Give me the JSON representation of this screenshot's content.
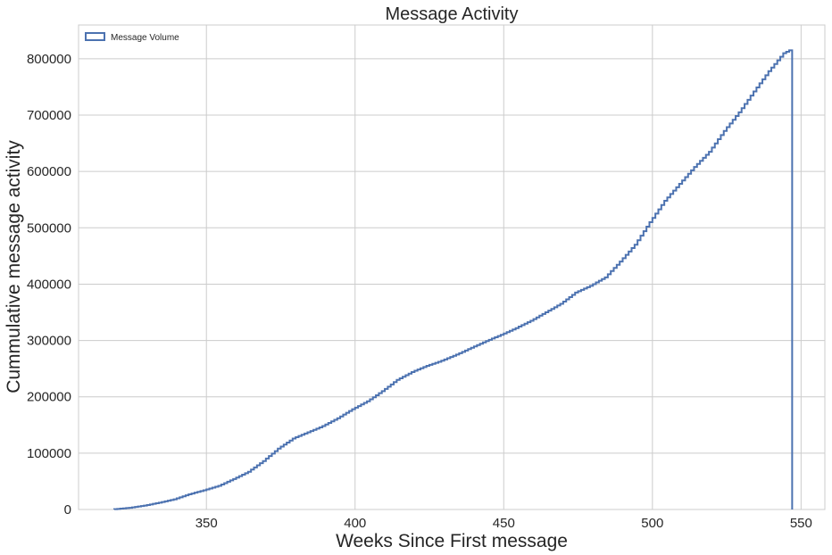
{
  "chart_data": {
    "type": "line",
    "title": "Message Activity",
    "xlabel": "Weeks Since First message",
    "ylabel": "Cummulative message activity",
    "xlim": [
      307,
      558
    ],
    "ylim": [
      0,
      860000
    ],
    "xticks": [
      350,
      400,
      450,
      500,
      550
    ],
    "yticks": [
      0,
      100000,
      200000,
      300000,
      400000,
      500000,
      600000,
      700000,
      800000
    ],
    "grid": true,
    "legend_position": "top-left",
    "series": [
      {
        "name": "Message Volume",
        "style": "step",
        "color": "#4c72b0",
        "x": [
          319,
          325,
          330,
          335,
          340,
          345,
          350,
          355,
          360,
          365,
          370,
          375,
          380,
          385,
          390,
          395,
          400,
          405,
          410,
          415,
          420,
          425,
          430,
          435,
          440,
          445,
          450,
          455,
          460,
          465,
          470,
          475,
          480,
          485,
          490,
          495,
          500,
          505,
          510,
          515,
          520,
          525,
          530,
          535,
          540,
          545,
          547
        ],
        "y": [
          0,
          3000,
          7000,
          12000,
          18000,
          27000,
          34000,
          42000,
          54000,
          67000,
          86000,
          108000,
          126000,
          137000,
          148000,
          162000,
          178000,
          192000,
          210000,
          230000,
          244000,
          255000,
          264000,
          275000,
          287000,
          299000,
          310000,
          322000,
          335000,
          350000,
          365000,
          385000,
          397000,
          412000,
          440000,
          470000,
          510000,
          548000,
          578000,
          608000,
          635000,
          672000,
          705000,
          742000,
          778000,
          810000,
          815000
        ]
      }
    ]
  }
}
